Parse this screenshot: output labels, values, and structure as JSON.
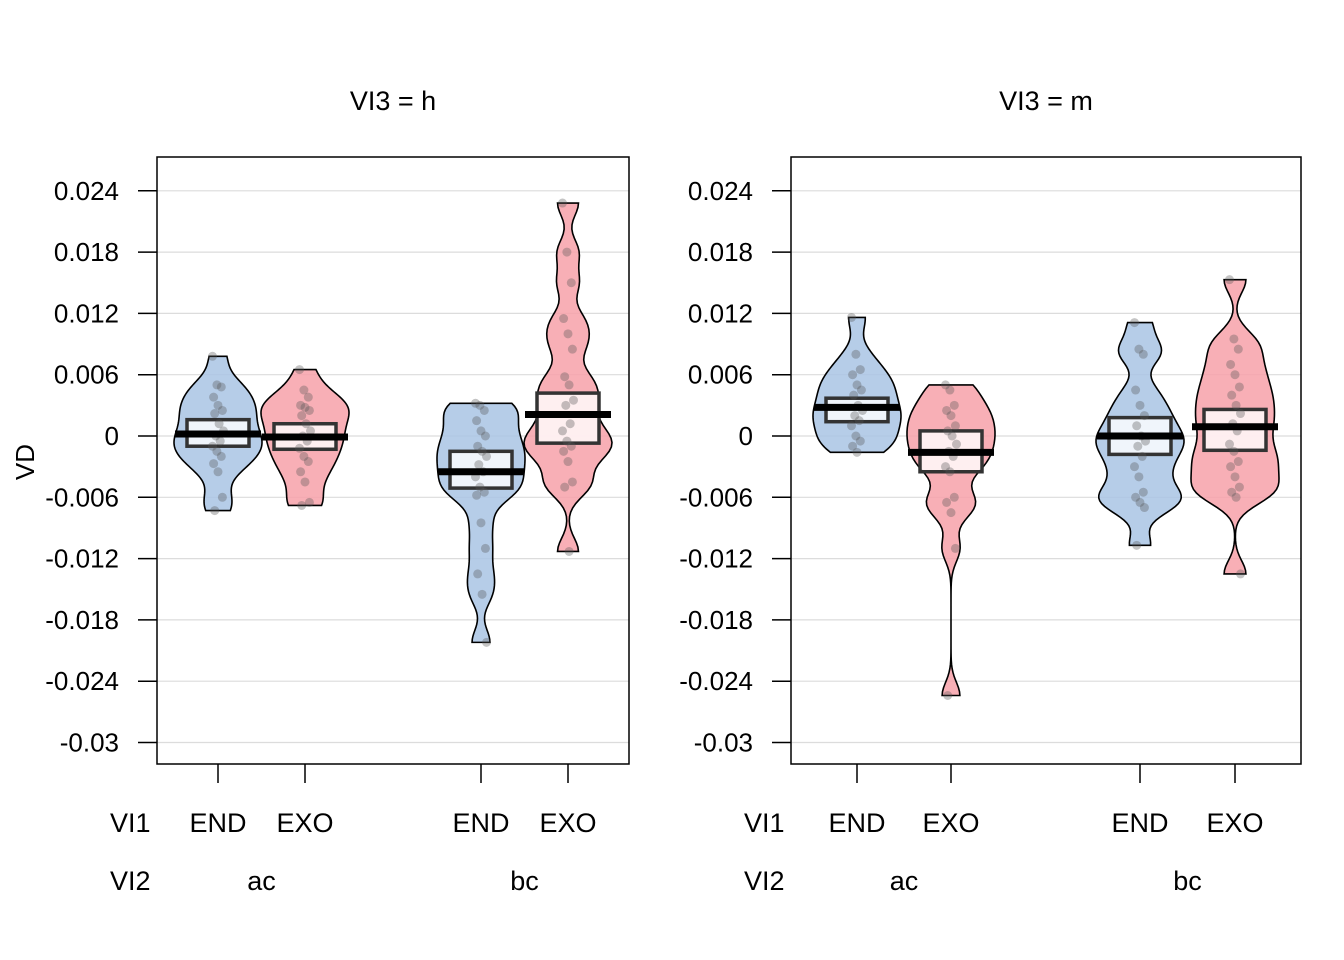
{
  "chart_data": {
    "type": "pirateplot",
    "ylabel": "VD",
    "ylim": [
      -0.033,
      0.027
    ],
    "yticks": [
      0.024,
      0.018,
      0.012,
      0.006,
      0,
      -0.006,
      -0.012,
      -0.018,
      -0.024,
      -0.03
    ],
    "ytick_labels": [
      "0.024",
      "0.018",
      "0.012",
      "0.006",
      "0",
      "-0.006",
      "-0.012",
      "-0.018",
      "-0.024",
      "-0.03"
    ],
    "grid": true,
    "row_labels": {
      "vi1": "VI1",
      "vi2": "VI2"
    },
    "colors": {
      "END": "#A9C4E4",
      "EXO": "#F7A1A9"
    },
    "panels": [
      {
        "title": "VI3 = h",
        "groups": [
          {
            "vi1": "END",
            "vi2": "ac",
            "mean": 0.0002,
            "box": [
              -0.001,
              0.0016
            ],
            "points": [
              0.0078,
              0.005,
              0.0048,
              0.0038,
              0.003,
              0.0025,
              0.0022,
              0.0012,
              0.0005,
              0,
              -0.0005,
              -0.001,
              -0.0015,
              -0.002,
              -0.0027,
              -0.0035,
              -0.006,
              -0.0073
            ]
          },
          {
            "vi1": "EXO",
            "vi2": "ac",
            "mean": -0.0001,
            "box": [
              -0.0013,
              0.0012
            ],
            "points": [
              0.0065,
              0.0045,
              0.0038,
              0.003,
              0.0028,
              0.0025,
              0.002,
              0.0012,
              0.0005,
              0,
              -0.0005,
              -0.0012,
              -0.002,
              -0.0025,
              -0.0035,
              -0.0045,
              -0.0065,
              -0.0068
            ]
          },
          {
            "vi1": "END",
            "vi2": "bc",
            "mean": -0.0035,
            "box": [
              -0.0051,
              -0.0015
            ],
            "points": [
              0.0032,
              0.003,
              0.0025,
              0.0015,
              0.0005,
              0,
              -0.001,
              -0.0015,
              -0.002,
              -0.0028,
              -0.0035,
              -0.004,
              -0.005,
              -0.0055,
              -0.0058,
              -0.0085,
              -0.011,
              -0.0135,
              -0.0155,
              -0.0202
            ]
          },
          {
            "vi1": "EXO",
            "vi2": "bc",
            "mean": 0.0021,
            "box": [
              -0.0007,
              0.0042
            ],
            "points": [
              0.0228,
              0.018,
              0.015,
              0.0115,
              0.01,
              0.0085,
              0.0058,
              0.005,
              0.0035,
              0.003,
              0.0012,
              0.0005,
              -0.0005,
              -0.001,
              -0.0015,
              -0.0025,
              -0.0045,
              -0.005,
              -0.0113
            ]
          }
        ]
      },
      {
        "title": "VI3 = m",
        "groups": [
          {
            "vi1": "END",
            "vi2": "ac",
            "mean": 0.0028,
            "box": [
              0.0014,
              0.0037
            ],
            "points": [
              0.0116,
              0.008,
              0.0065,
              0.006,
              0.005,
              0.0045,
              0.004,
              0.003,
              0.0025,
              0.002,
              0.0015,
              0.001,
              0,
              -0.0005,
              -0.001,
              -0.0016
            ]
          },
          {
            "vi1": "EXO",
            "vi2": "ac",
            "mean": -0.0016,
            "box": [
              -0.0035,
              0.0005
            ],
            "points": [
              0.005,
              0.0045,
              0.003,
              0.0025,
              0.002,
              0.001,
              0.0005,
              0,
              -0.0008,
              -0.0015,
              -0.002,
              -0.003,
              -0.0035,
              -0.006,
              -0.0065,
              -0.0075,
              -0.011,
              -0.0254
            ]
          },
          {
            "vi1": "END",
            "vi2": "bc",
            "mean": 0.0,
            "box": [
              -0.0018,
              0.0018
            ],
            "points": [
              0.0111,
              0.0085,
              0.008,
              0.0045,
              0.003,
              0.002,
              0.001,
              0,
              -0.0005,
              -0.001,
              -0.002,
              -0.003,
              -0.004,
              -0.0055,
              -0.006,
              -0.0065,
              -0.007,
              -0.0107
            ]
          },
          {
            "vi1": "EXO",
            "vi2": "bc",
            "mean": 0.0009,
            "box": [
              -0.0014,
              0.0026
            ],
            "points": [
              0.0153,
              0.0095,
              0.0085,
              0.007,
              0.006,
              0.0048,
              0.004,
              0.003,
              0.0022,
              0.0012,
              0.0005,
              -0.0008,
              -0.0015,
              -0.0025,
              -0.003,
              -0.004,
              -0.005,
              -0.0055,
              -0.006,
              -0.0135
            ]
          }
        ]
      }
    ]
  }
}
